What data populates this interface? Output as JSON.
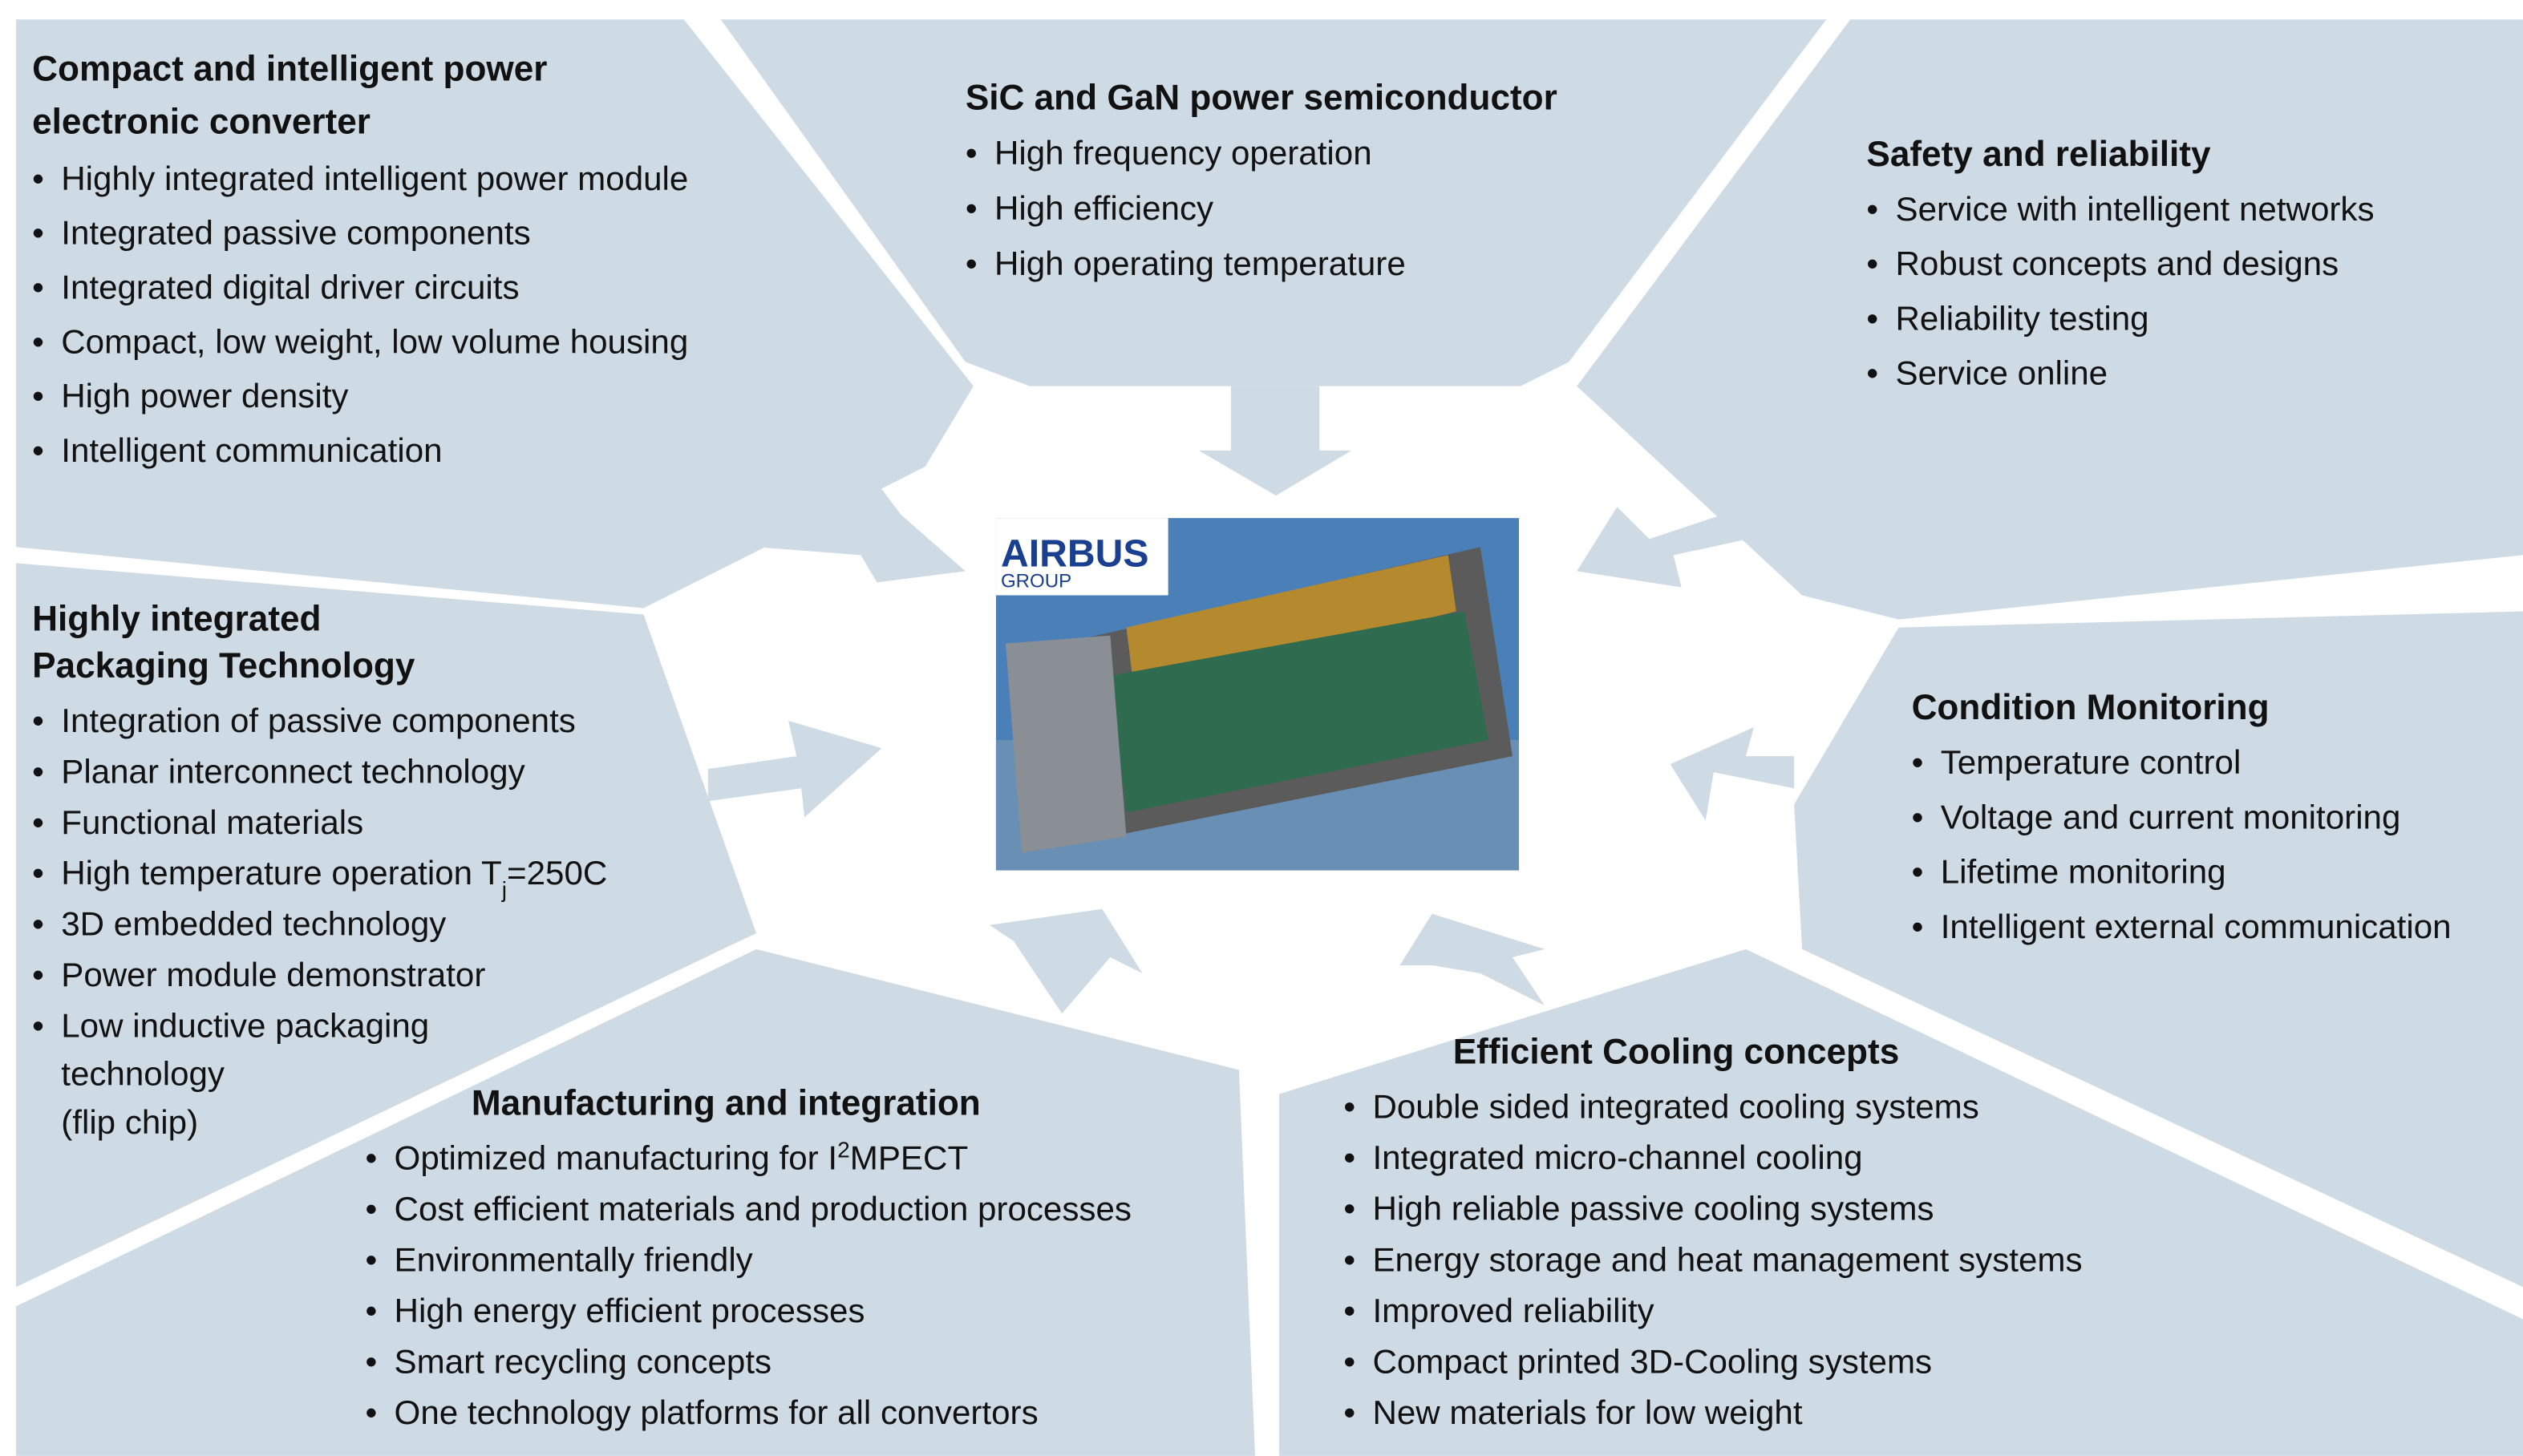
{
  "center_image": {
    "logo": "AIRBUS",
    "logo_sub": "GROUP"
  },
  "panels": [
    {
      "title_lines": [
        "Compact and intelligent power",
        "electronic converter"
      ],
      "items": [
        "Highly integrated intelligent power module",
        "Integrated passive components",
        "Integrated digital driver circuits",
        "Compact, low weight, low volume housing",
        "High power density",
        "Intelligent communication"
      ]
    },
    {
      "title_lines": [
        "SiC and GaN power semiconductor"
      ],
      "items": [
        "High frequency operation",
        "High efficiency",
        "High operating temperature"
      ]
    },
    {
      "title_lines": [
        "Safety and reliability"
      ],
      "items": [
        "Service with intelligent networks",
        "Robust concepts and designs",
        "Reliability testing",
        "Service online"
      ]
    },
    {
      "title_lines": [
        "Condition Monitoring"
      ],
      "items": [
        "Temperature control",
        "Voltage and current monitoring",
        "Lifetime monitoring",
        "Intelligent external communication"
      ]
    },
    {
      "title_lines": [
        "Highly integrated",
        "Packaging Technology"
      ],
      "items": [
        "Integration of passive components",
        "Planar interconnect technology",
        "Functional materials",
        {
          "runs": [
            {
              "text": "High temperature operation T"
            },
            {
              "sub": "j"
            },
            {
              "text": "=250C"
            }
          ]
        },
        "3D embedded technology",
        "Power module demonstrator",
        {
          "lines": [
            "Low inductive packaging",
            "technology",
            "(flip chip)"
          ]
        }
      ]
    },
    {
      "title_lines": [
        "Manufacturing and integration"
      ],
      "items": [
        {
          "runs": [
            {
              "text": "Optimized manufacturing  for I"
            },
            {
              "sup": "2"
            },
            {
              "text": "MPECT"
            }
          ]
        },
        "Cost efficient materials and production processes",
        "Environmentally friendly",
        "High energy efficient processes",
        "Smart recycling concepts",
        "One technology platforms for all convertors"
      ]
    },
    {
      "title_lines": [
        "Efficient Cooling concepts"
      ],
      "items": [
        "Double sided integrated cooling systems",
        "Integrated micro-channel cooling",
        "High reliable passive cooling systems",
        "Energy storage and heat management systems",
        "Improved reliability",
        "Compact printed 3D-Cooling systems",
        "New materials for low weight"
      ]
    }
  ]
}
